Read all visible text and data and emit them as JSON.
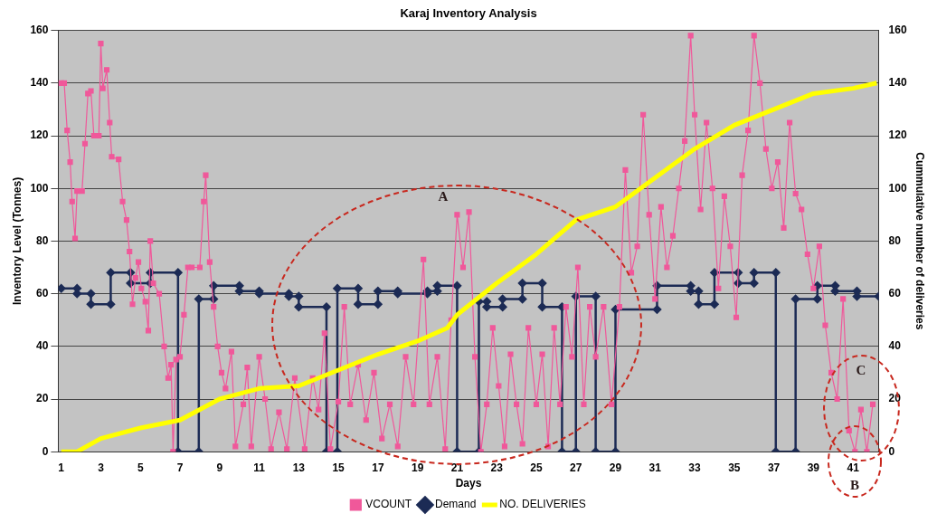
{
  "chart_data": {
    "type": "line",
    "title": "Karaj Inventory Analysis",
    "xlabel": "Days",
    "ylabel": "Inventory Level (Tonnes)",
    "y2label": "Cummulative number of deliveries",
    "xlim": [
      0.85,
      42.3
    ],
    "xticks": [
      1,
      3,
      5,
      7,
      9,
      11,
      13,
      15,
      17,
      19,
      21,
      23,
      25,
      27,
      29,
      31,
      33,
      35,
      37,
      39,
      41
    ],
    "ylim": [
      0,
      160
    ],
    "yticks": [
      0,
      20,
      40,
      60,
      80,
      100,
      120,
      140,
      160
    ],
    "y2lim": [
      0,
      160
    ],
    "y2ticks": [
      0,
      20,
      40,
      60,
      80,
      100,
      120,
      140,
      160
    ],
    "grid": "y",
    "legend": "bottom",
    "annotations": [
      "A",
      "B",
      "C"
    ],
    "series": [
      {
        "name": "VCOUNT",
        "color": "#f0589a",
        "marker": "square",
        "x": [
          1,
          1.15,
          1.3,
          1.45,
          1.55,
          1.7,
          1.8,
          2.05,
          2.2,
          2.35,
          2.5,
          2.65,
          2.9,
          3.0,
          3.1,
          3.3,
          3.45,
          3.55,
          3.9,
          4.1,
          4.3,
          4.45,
          4.6,
          4.75,
          4.9,
          5.05,
          5.25,
          5.4,
          5.5,
          5.65,
          5.95,
          6.2,
          6.4,
          6.55,
          6.65,
          6.8,
          7.0,
          7.2,
          7.4,
          7.6,
          8.0,
          8.2,
          8.3,
          8.5,
          8.7,
          8.9,
          9.1,
          9.3,
          9.6,
          9.8,
          10.2,
          10.4,
          10.6,
          11.0,
          11.3,
          11.6,
          12.0,
          12.4,
          12.8,
          13.3,
          13.7,
          14.0,
          14.3,
          14.6,
          15.0,
          15.3,
          15.6,
          16.0,
          16.4,
          16.8,
          17.2,
          17.6,
          18.0,
          18.4,
          18.8,
          19.3,
          19.6,
          20.0,
          20.4,
          20.7,
          21.0,
          21.3,
          21.6,
          21.9,
          22.2,
          22.5,
          22.8,
          23.1,
          23.4,
          23.7,
          24.0,
          24.3,
          24.6,
          25.0,
          25.3,
          25.6,
          25.9,
          26.2,
          26.5,
          26.8,
          27.1,
          27.4,
          27.7,
          28.0,
          28.4,
          28.8,
          29.2,
          29.5,
          29.8,
          30.1,
          30.4,
          30.7,
          31.0,
          31.3,
          31.6,
          31.9,
          32.2,
          32.5,
          32.8,
          33.0,
          33.3,
          33.6,
          33.9,
          34.2,
          34.5,
          34.8,
          35.1,
          35.4,
          35.7,
          36.0,
          36.3,
          36.6,
          36.9,
          37.2,
          37.5,
          37.8,
          38.1,
          38.4,
          38.7,
          39.0,
          39.3,
          39.6,
          39.9,
          40.2,
          40.5,
          40.8,
          41.1,
          41.4,
          41.7,
          42.0
        ],
        "values": [
          140,
          140,
          122,
          110,
          95,
          81,
          99,
          99,
          117,
          136,
          137,
          120,
          120,
          155,
          138,
          145,
          125,
          112,
          111,
          95,
          88,
          76,
          56,
          66,
          72,
          62,
          57,
          46,
          80,
          64,
          60,
          40,
          28,
          33,
          0,
          35,
          36,
          52,
          70,
          70,
          70,
          95,
          105,
          72,
          55,
          40,
          30,
          24,
          38,
          2,
          18,
          32,
          2,
          36,
          20,
          1,
          15,
          1,
          28,
          1,
          28,
          16,
          45,
          1,
          19,
          55,
          18,
          33,
          12,
          30,
          5,
          18,
          2,
          36,
          18,
          73,
          18,
          36,
          1,
          50,
          90,
          70,
          91,
          36,
          0,
          18,
          47,
          25,
          2,
          37,
          18,
          3,
          47,
          18,
          37,
          2,
          47,
          18,
          55,
          36,
          70,
          18,
          55,
          36,
          55,
          18,
          55,
          107,
          68,
          78,
          128,
          90,
          58,
          93,
          70,
          82,
          100,
          118,
          158,
          128,
          92,
          125,
          100,
          62,
          97,
          78,
          51,
          105,
          122,
          158,
          140,
          115,
          100,
          110,
          85,
          125,
          98,
          92,
          75,
          62,
          78,
          48,
          30,
          20,
          58,
          8,
          0,
          16,
          0,
          18
        ]
      },
      {
        "name": "Demand",
        "color": "#1c2b55",
        "marker": "diamond",
        "x": [
          1,
          1.8,
          1.8,
          2.5,
          2.5,
          3.5,
          3.5,
          4.5,
          4.5,
          5.5,
          5.5,
          6.9,
          6.9,
          7.95,
          7.95,
          8.7,
          8.7,
          10,
          10,
          11,
          11,
          12.5,
          12.5,
          13,
          13,
          14.4,
          14.4,
          14.95,
          14.95,
          16,
          16,
          17,
          17,
          18,
          18,
          19.5,
          19.5,
          20,
          20,
          21,
          21,
          22.1,
          22.1,
          22.5,
          22.5,
          23.3,
          23.3,
          24.3,
          24.3,
          25.3,
          25.3,
          26.3,
          26.3,
          27,
          27,
          28,
          28,
          29,
          29,
          31.1,
          31.1,
          32.8,
          32.8,
          33.2,
          33.2,
          34,
          34,
          35.2,
          35.2,
          36,
          36,
          37.1,
          37.1,
          38.1,
          38.1,
          39.2,
          39.2,
          40.1,
          40.1,
          41.2,
          41.2,
          42.3
        ],
        "values": [
          62,
          62,
          60,
          60,
          56,
          56,
          68,
          68,
          64,
          64,
          68,
          68,
          0,
          0,
          58,
          58,
          63,
          63,
          61,
          61,
          60,
          60,
          59,
          59,
          55,
          55,
          0,
          0,
          62,
          62,
          56,
          56,
          61,
          61,
          60,
          60,
          61,
          61,
          63,
          63,
          0,
          0,
          57,
          57,
          55,
          55,
          58,
          58,
          64,
          64,
          55,
          55,
          0,
          0,
          59,
          59,
          0,
          0,
          54,
          54,
          63,
          63,
          61,
          61,
          56,
          56,
          68,
          68,
          64,
          64,
          68,
          68,
          0,
          0,
          58,
          58,
          63,
          63,
          61,
          61,
          59,
          59
        ]
      },
      {
        "name": "NO. DELIVERIES",
        "color": "#ffff00",
        "marker": "none",
        "axis": "y2",
        "x": [
          1,
          1.8,
          3,
          5,
          7,
          9,
          11,
          13,
          15,
          17,
          19,
          20.5,
          21,
          23,
          25,
          27,
          29,
          31,
          33,
          35,
          37,
          39,
          41,
          42.2
        ],
        "values": [
          0,
          0,
          5,
          9,
          12,
          20,
          24,
          25,
          31,
          37,
          42,
          47,
          52,
          64,
          75,
          88,
          93,
          104,
          115,
          124,
          130,
          136,
          138,
          140
        ]
      }
    ]
  }
}
